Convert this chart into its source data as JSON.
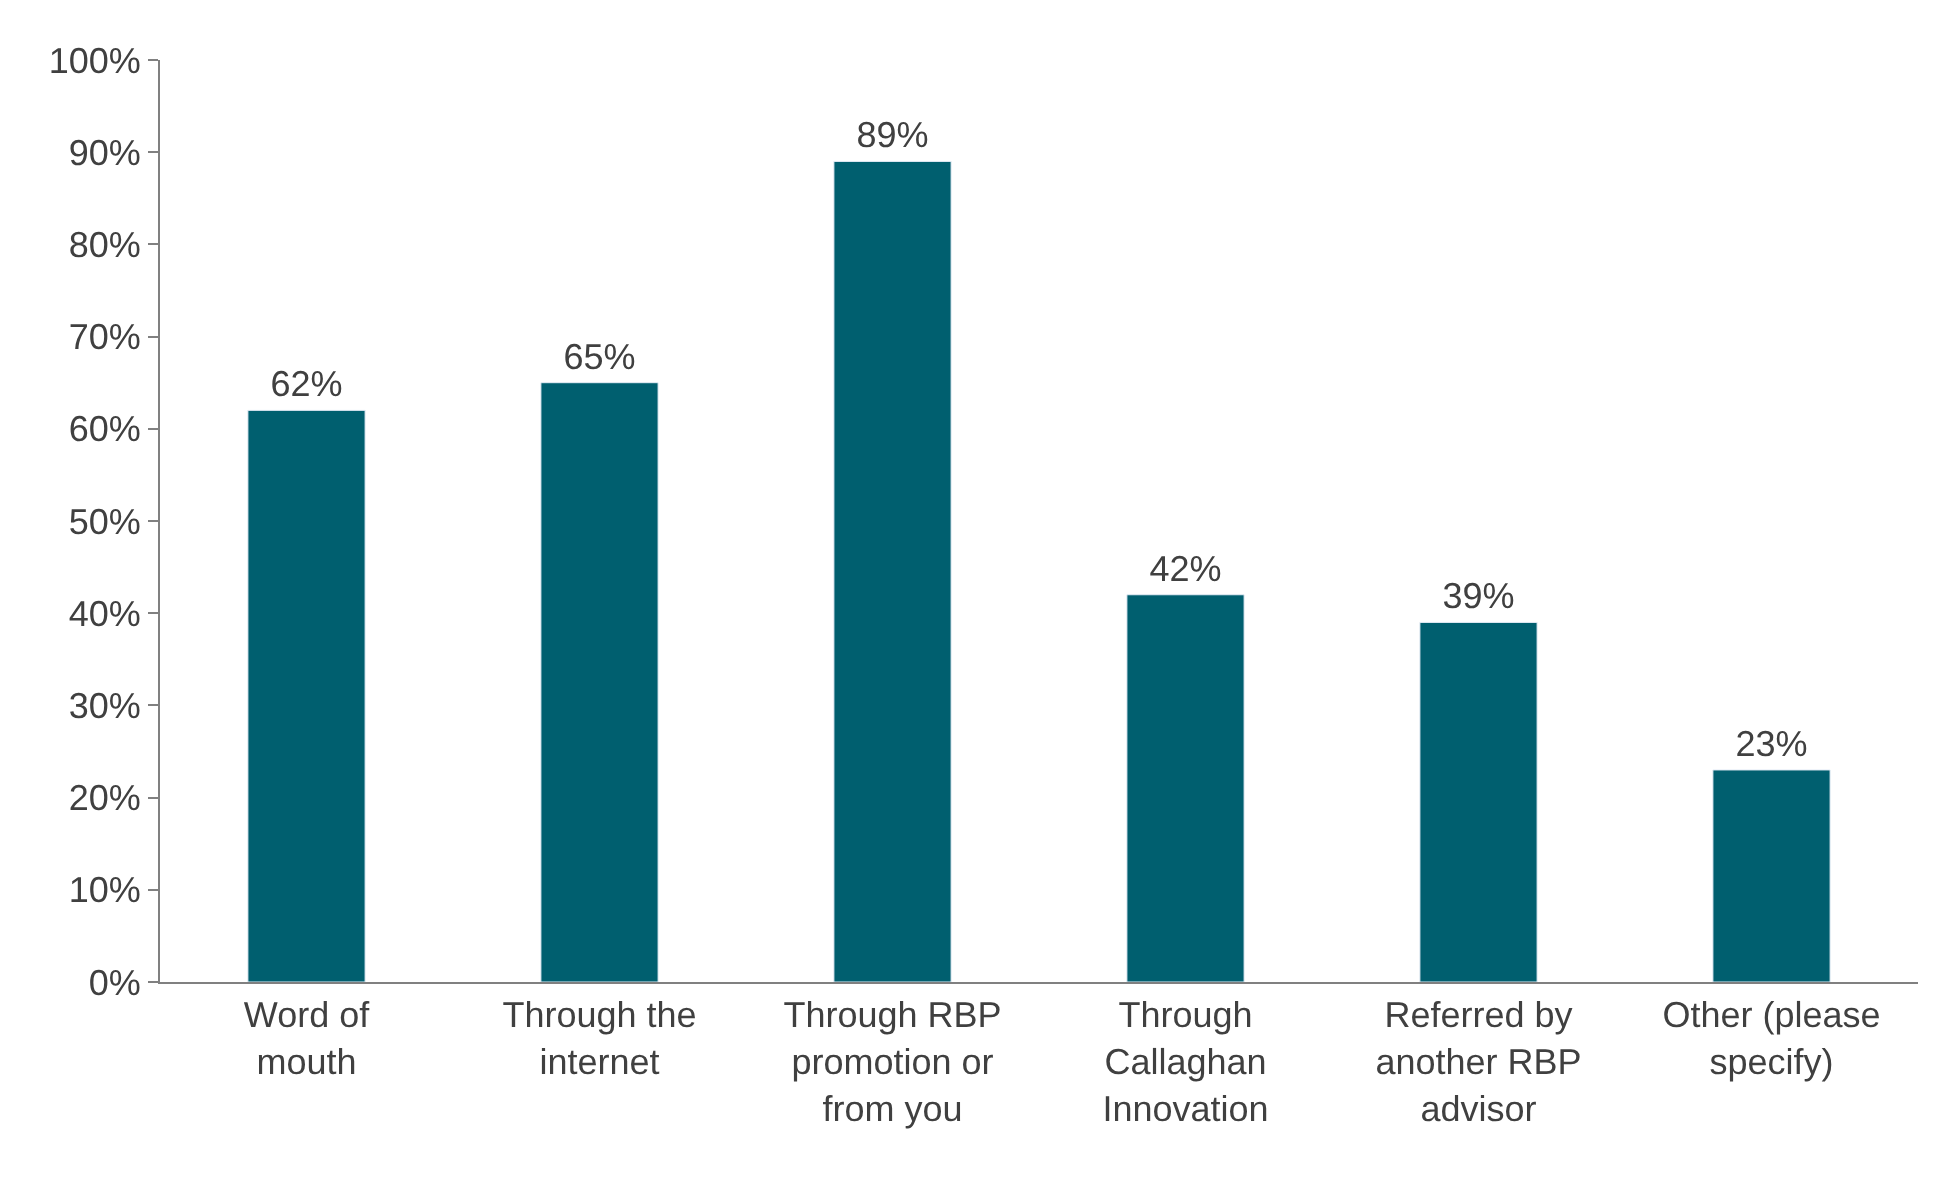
{
  "chart_data": {
    "type": "bar",
    "categories": [
      "Word of\nmouth",
      "Through the\ninternet",
      "Through RBP\npromotion or\nfrom you",
      "Through\nCallaghan\nInnovation",
      "Referred by\nanother RBP\nadvisor",
      "Other (please\nspecify)"
    ],
    "values": [
      62,
      65,
      89,
      42,
      39,
      23
    ],
    "color": "#005f6f",
    "data_labels": true,
    "value_labels": [
      "62%",
      "65%",
      "89%",
      "42%",
      "39%",
      "23%"
    ],
    "ylim": [
      0,
      100
    ],
    "yticks": [
      {
        "value": 0,
        "label": "0%"
      },
      {
        "value": 10,
        "label": "10%"
      },
      {
        "value": 20,
        "label": "20%"
      },
      {
        "value": 30,
        "label": "30%"
      },
      {
        "value": 40,
        "label": "40%"
      },
      {
        "value": 50,
        "label": "50%"
      },
      {
        "value": 60,
        "label": "60%"
      },
      {
        "value": 70,
        "label": "70%"
      },
      {
        "value": 80,
        "label": "80%"
      },
      {
        "value": 90,
        "label": "90%"
      },
      {
        "value": 100,
        "label": "100%"
      }
    ],
    "grid": false
  }
}
